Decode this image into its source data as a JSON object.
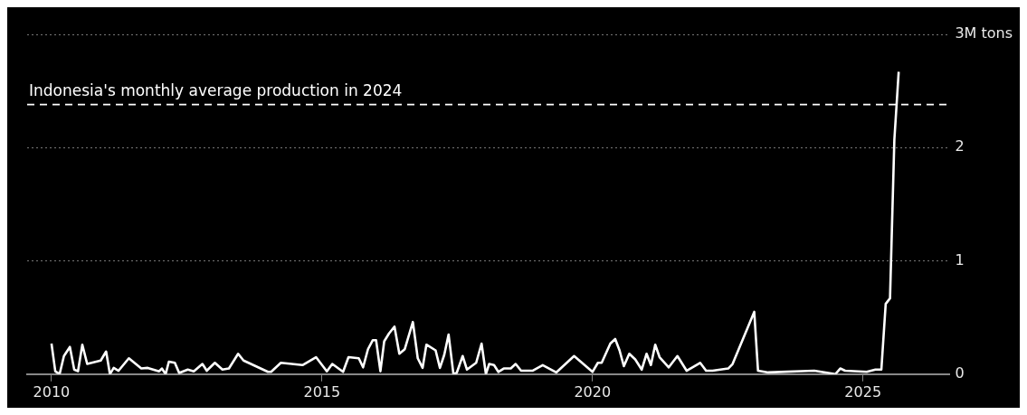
{
  "chart_data": {
    "type": "line",
    "x": [
      2010.0,
      2010.07,
      2010.15,
      2010.23,
      2010.34,
      2010.42,
      2010.49,
      2010.57,
      2010.66,
      2010.91,
      2011.01,
      2011.08,
      2011.15,
      2011.24,
      2011.43,
      2011.66,
      2011.78,
      2011.99,
      2012.04,
      2012.11,
      2012.17,
      2012.28,
      2012.36,
      2012.52,
      2012.63,
      2012.79,
      2012.87,
      2013.02,
      2013.16,
      2013.28,
      2013.45,
      2013.55,
      2014.0,
      2014.06,
      2014.24,
      2014.64,
      2014.89,
      2015.09,
      2015.19,
      2015.39,
      2015.49,
      2015.68,
      2015.76,
      2015.85,
      2015.94,
      2016.0,
      2016.08,
      2016.15,
      2016.24,
      2016.34,
      2016.43,
      2016.53,
      2016.68,
      2016.77,
      2016.86,
      2016.93,
      2017.1,
      2017.18,
      2017.26,
      2017.34,
      2017.43,
      2017.49,
      2017.6,
      2017.68,
      2017.85,
      2017.95,
      2018.03,
      2018.09,
      2018.18,
      2018.26,
      2018.36,
      2018.49,
      2018.58,
      2018.68,
      2018.89,
      2019.08,
      2019.33,
      2019.66,
      2020.0,
      2020.1,
      2020.17,
      2020.33,
      2020.42,
      2020.5,
      2020.58,
      2020.68,
      2020.79,
      2020.91,
      2021.0,
      2021.08,
      2021.16,
      2021.24,
      2021.41,
      2021.57,
      2021.74,
      2021.99,
      2022.1,
      2022.22,
      2022.51,
      2022.59,
      2022.99,
      2023.06,
      2023.25,
      2024.1,
      2024.49,
      2024.58,
      2024.67,
      2025.07,
      2025.23,
      2025.34,
      2025.42,
      2025.5,
      2025.58,
      2025.66
    ],
    "series": [
      {
        "color": "#ffffff",
        "values": [
          0.27,
          0.025,
          0,
          0.16,
          0.24,
          0.04,
          0.025,
          0.26,
          0.09,
          0.12,
          0.2,
          0,
          0.055,
          0.03,
          0.14,
          0.05,
          0.055,
          0.025,
          0.05,
          0,
          0.11,
          0.1,
          0.01,
          0.04,
          0.025,
          0.09,
          0.03,
          0.1,
          0.04,
          0.05,
          0.18,
          0.12,
          0.02,
          0.02,
          0.1,
          0.08,
          0.15,
          0.025,
          0.09,
          0.02,
          0.15,
          0.14,
          0.06,
          0.22,
          0.3,
          0.3,
          0.025,
          0.29,
          0.36,
          0.42,
          0.18,
          0.22,
          0.46,
          0.14,
          0.055,
          0.26,
          0.21,
          0.055,
          0.17,
          0.35,
          0,
          0.01,
          0.16,
          0.04,
          0.1,
          0.27,
          0,
          0.09,
          0.08,
          0.02,
          0.05,
          0.05,
          0.09,
          0.03,
          0.03,
          0.08,
          0.015,
          0.16,
          0.02,
          0.1,
          0.1,
          0.27,
          0.31,
          0.21,
          0.07,
          0.18,
          0.13,
          0.04,
          0.18,
          0.08,
          0.26,
          0.15,
          0.06,
          0.16,
          0.03,
          0.1,
          0.03,
          0.03,
          0.05,
          0.09,
          0.55,
          0.03,
          0.015,
          0.03,
          0,
          0.05,
          0.03,
          0.02,
          0.04,
          0.04,
          0.62,
          0.67,
          2.07,
          2.67
        ]
      }
    ],
    "xlim": [
      2009.55,
      2026.6
    ],
    "xticks": [
      2010,
      2015,
      2020,
      2025
    ],
    "ylim": [
      0,
      3
    ],
    "yticks": [
      0,
      1,
      2,
      {
        "value": 3,
        "label": "3M tons"
      }
    ],
    "grid": "y",
    "marker": "none",
    "line_style": "solid",
    "ref_lines": [
      {
        "axis": "y",
        "value": 2.38,
        "label": "Indonesia's monthly average production in 2024",
        "color": "#ffffff",
        "line_style": "dashed"
      }
    ]
  }
}
